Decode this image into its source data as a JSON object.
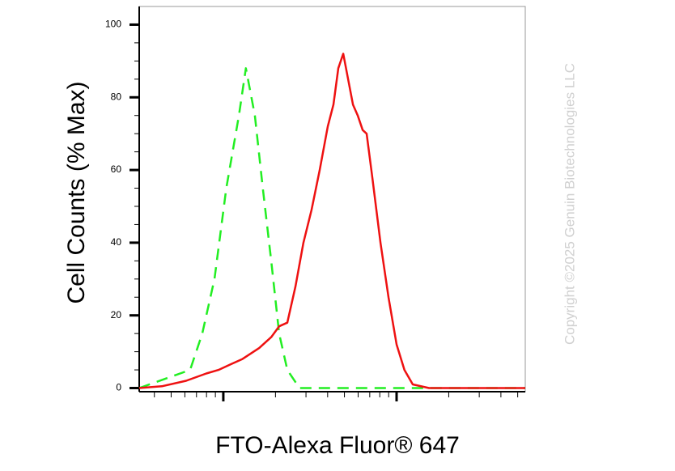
{
  "chart_data": {
    "type": "line",
    "y_label": "Cell Counts (% Max)",
    "x_label": "FTO-Alexa Fluor® 647",
    "watermark": "Copyright ©2025 Genuin Biotechnologies LLC",
    "x_log": true,
    "xlim": [
      3.27,
      553
    ],
    "xticks": [
      10,
      100
    ],
    "xminorticks": [
      4,
      5,
      6,
      7,
      8,
      9,
      20,
      30,
      40,
      50,
      60,
      70,
      80,
      90,
      200,
      300,
      400,
      500
    ],
    "ylim": [
      -1,
      105
    ],
    "yticks": [
      0,
      20,
      40,
      60,
      80,
      100
    ],
    "yminorticks": [
      5,
      10,
      15,
      25,
      30,
      35,
      45,
      50,
      55,
      65,
      70,
      75,
      85,
      90,
      95
    ],
    "series": [
      {
        "color": "#22ee22",
        "dashed": true,
        "x": [
          3.27,
          6.43,
          7.56,
          8.89,
          10.4,
          12.3,
          13.5,
          15.2,
          16.9,
          18.9,
          21.0,
          23.4,
          27.5,
          553
        ],
        "values": [
          0,
          5,
          15,
          30,
          55,
          75,
          88,
          75,
          55,
          35,
          15,
          5,
          0,
          0
        ]
      },
      {
        "color": "#ee1111",
        "dashed": false,
        "x": [
          3.27,
          4.42,
          6.1,
          7.98,
          9.38,
          11.0,
          12.9,
          16.1,
          18.9,
          21.0,
          23.4,
          26.1,
          29.0,
          32.3,
          36.0,
          40.1,
          43.2,
          46.1,
          49.2,
          52.5,
          56.0,
          59.7,
          63.7,
          67.2,
          72.4,
          80.7,
          89.8,
          100,
          111,
          124,
          154,
          553
        ],
        "values": [
          0,
          0.5,
          2,
          4,
          5,
          6.5,
          8,
          11,
          14,
          17,
          18,
          28,
          40,
          49,
          60,
          72,
          78,
          88,
          92,
          85,
          78,
          75,
          71,
          70,
          58,
          40,
          25,
          12,
          5,
          1,
          0,
          0
        ]
      }
    ]
  }
}
